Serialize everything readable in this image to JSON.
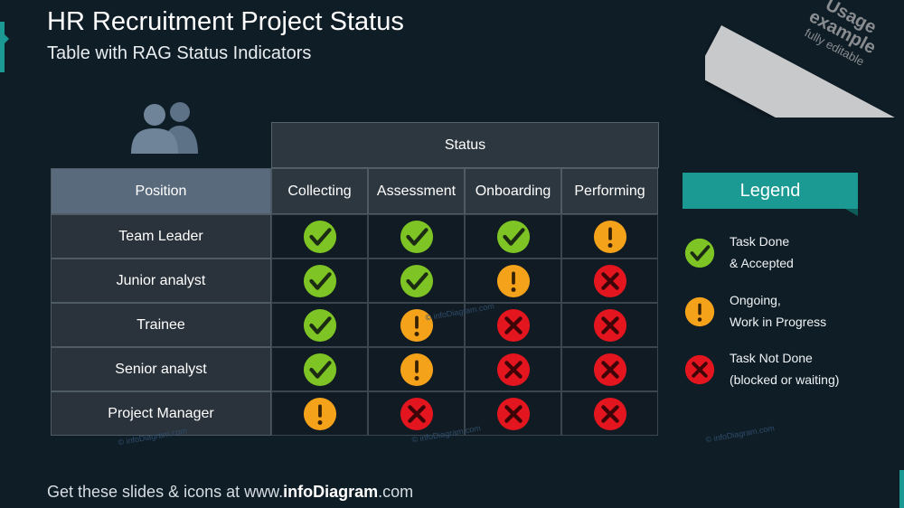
{
  "header": {
    "title": "HR Recruitment Project Status",
    "subtitle": "Table with RAG Status Indicators"
  },
  "ribbon": {
    "line1": "Usage",
    "line2": "example",
    "line3": "fully editable"
  },
  "table": {
    "status_label": "Status",
    "position_label": "Position",
    "columns": [
      "Collecting",
      "Assessment",
      "Onboarding",
      "Performing"
    ],
    "rows": [
      {
        "label": "Team Leader",
        "status": [
          "done",
          "done",
          "done",
          "ongoing"
        ]
      },
      {
        "label": "Junior analyst",
        "status": [
          "done",
          "done",
          "ongoing",
          "blocked"
        ]
      },
      {
        "label": "Trainee",
        "status": [
          "done",
          "ongoing",
          "blocked",
          "blocked"
        ]
      },
      {
        "label": "Senior analyst",
        "status": [
          "done",
          "ongoing",
          "blocked",
          "blocked"
        ]
      },
      {
        "label": "Project Manager",
        "status": [
          "ongoing",
          "blocked",
          "blocked",
          "blocked"
        ]
      }
    ]
  },
  "legend": {
    "title": "Legend",
    "items": [
      {
        "status": "done",
        "line1": "Task Done",
        "line2": "& Accepted"
      },
      {
        "status": "ongoing",
        "line1": "Ongoing,",
        "line2": "Work in Progress"
      },
      {
        "status": "blocked",
        "line1": "Task Not Done",
        "line2": "(blocked or waiting)"
      }
    ]
  },
  "footer": {
    "prefix": "Get these slides & icons at www.",
    "brand": "infoDiagram",
    "suffix": ".com"
  },
  "watermark": "© infoDiagram.com",
  "icons": {
    "people": "people-group-icon",
    "done": "check-circle-icon",
    "ongoing": "exclamation-circle-icon",
    "blocked": "x-circle-icon"
  },
  "colors": {
    "background": "#0f1d27",
    "accent": "#1a9a93",
    "done": "#7dc424",
    "ongoing": "#f5a21b",
    "blocked": "#e3151f"
  }
}
